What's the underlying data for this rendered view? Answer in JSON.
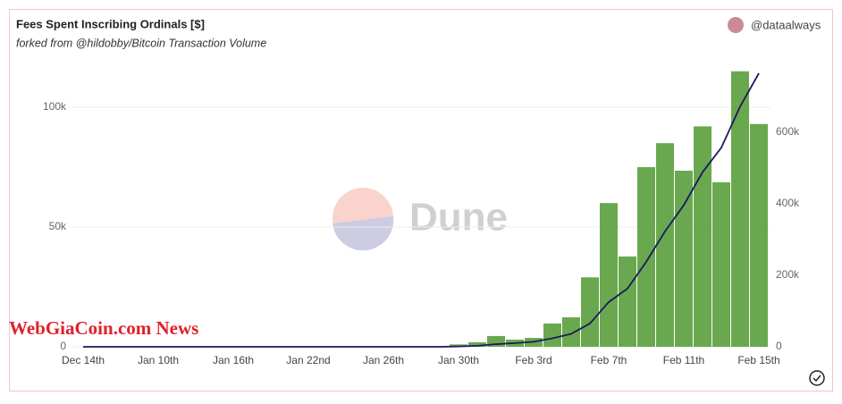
{
  "header": {
    "title": "Fees Spent Inscribing Ordinals [$]",
    "subtitle": "forked from @hildobby/Bitcoin Transaction Volume",
    "user": "@dataalways"
  },
  "watermark": "Dune",
  "overlay_text": "WebGiaCoin.com News",
  "chart_data": {
    "type": "bar",
    "categories": [
      "Dec 14th",
      null,
      null,
      null,
      "Jan 10th",
      null,
      null,
      null,
      "Jan 16th",
      null,
      null,
      null,
      "Jan 22nd",
      null,
      null,
      null,
      "Jan 26th",
      null,
      null,
      null,
      "Jan 30th",
      null,
      null,
      null,
      "Feb 3rd",
      null,
      null,
      null,
      "Feb 7th",
      null,
      null,
      null,
      "Feb 11th",
      null,
      null,
      null,
      "Feb 15th"
    ],
    "series": [
      {
        "color": "#6aa84f",
        "values": [
          0,
          0,
          0,
          0,
          0,
          0,
          0,
          0,
          0,
          0,
          0,
          0,
          0,
          0,
          0,
          0,
          0,
          0,
          0,
          0,
          1000,
          1900,
          4500,
          3000,
          3700,
          9700,
          12300,
          29000,
          60000,
          37700,
          75000,
          85000,
          73500,
          92000,
          68700,
          115000,
          93000
        ]
      },
      {
        "color": "#1a1a5e",
        "axis": "y2",
        "values": [
          0,
          0,
          0,
          0,
          0,
          0,
          0,
          0,
          0,
          0,
          0,
          0,
          0,
          0,
          0,
          0,
          0,
          0,
          0,
          0,
          1000,
          2900,
          7400,
          10400,
          14100,
          23800,
          36100,
          65100,
          125100,
          162800,
          237800,
          322800,
          396300,
          488300,
          557000,
          672000,
          765000
        ]
      }
    ],
    "ylim": [
      0,
      117000
    ],
    "yticks": [
      0,
      {
        "value": 50000,
        "label": "50k"
      },
      {
        "value": 100000,
        "label": "100k"
      }
    ],
    "y2lim": [
      0,
      784000
    ],
    "y2ticks": [
      0,
      {
        "value": 200000,
        "label": "200k"
      },
      {
        "value": 400000,
        "label": "400k"
      },
      {
        "value": 600000,
        "label": "600k"
      }
    ],
    "grid": true
  }
}
